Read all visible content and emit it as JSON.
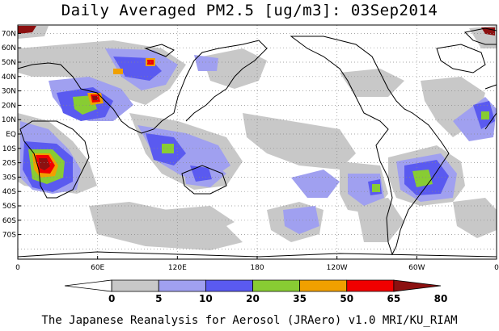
{
  "title": "Daily Averaged PM2.5 [ug/m3]: 03Sep2014",
  "footer": "The Japanese Reanalysis for Aerosol (JRAero) v1.0 MRI/KU_RIAM",
  "lat_labels": [
    "70N",
    "60N",
    "50N",
    "40N",
    "30N",
    "20N",
    "10N",
    "EQ",
    "10S",
    "20S",
    "30S",
    "40S",
    "50S",
    "60S",
    "70S"
  ],
  "lon_labels": [
    "0",
    "60E",
    "120E",
    "180",
    "120W",
    "60W",
    "0"
  ],
  "colorbar": {
    "labels": [
      "0",
      "5",
      "10",
      "20",
      "35",
      "50",
      "65",
      "80"
    ],
    "colors": [
      "#ffffff",
      "#c8c8c8",
      "#a0a0f0",
      "#5a5af0",
      "#88cc33",
      "#f0a000",
      "#f00000",
      "#8c1010"
    ]
  }
}
